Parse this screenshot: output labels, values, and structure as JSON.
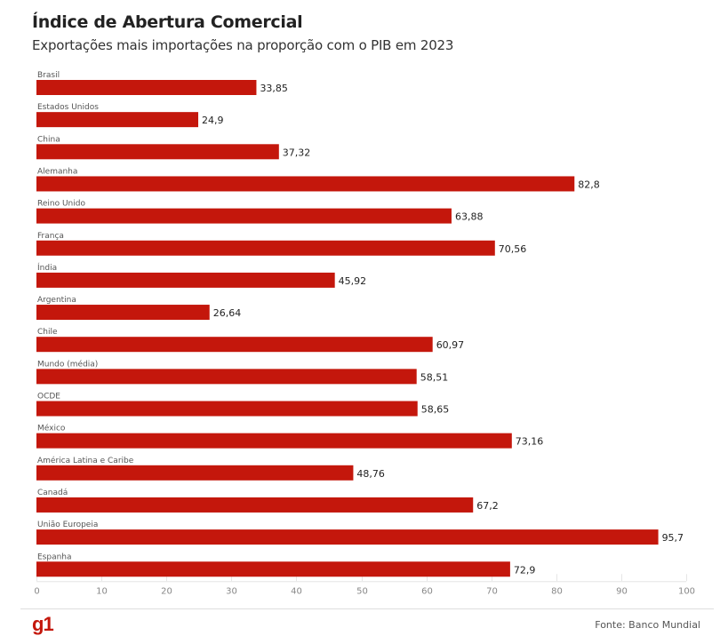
{
  "header": {
    "title": "Índice de Abertura Comercial",
    "subtitle": "Exportações mais importações na proporção com o PIB em 2023"
  },
  "footer": {
    "logo": "g1",
    "source": "Fonte: Banco Mundial"
  },
  "colors": {
    "bar": "#c4170c",
    "logo": "#c4170c"
  },
  "chart_data": {
    "type": "bar",
    "orientation": "horizontal",
    "title": "Índice de Abertura Comercial",
    "subtitle": "Exportações mais importações na proporção com o PIB em 2023",
    "xlabel": "",
    "ylabel": "",
    "xlim": [
      0,
      100
    ],
    "ticks": [
      0,
      10,
      20,
      30,
      40,
      50,
      60,
      70,
      80,
      90,
      100
    ],
    "grid": true,
    "categories": [
      "Brasil",
      "Estados Unidos",
      "China",
      "Alemanha",
      "Reino Unido",
      "França",
      "Índia",
      "Argentina",
      "Chile",
      "Mundo (média)",
      "OCDE",
      "México",
      "América Latina e Caribe",
      "Canadá",
      "União Europeia",
      "Espanha"
    ],
    "values": [
      33.85,
      24.9,
      37.32,
      82.8,
      63.88,
      70.56,
      45.92,
      26.64,
      60.97,
      58.51,
      58.65,
      73.16,
      48.76,
      67.2,
      95.7,
      72.9
    ],
    "value_labels": [
      "33,85",
      "24,9",
      "37,32",
      "82,8",
      "63,88",
      "70,56",
      "45,92",
      "26,64",
      "60,97",
      "58,51",
      "58,65",
      "73,16",
      "48,76",
      "67,2",
      "95,7",
      "72,9"
    ],
    "source": "Fonte: Banco Mundial"
  }
}
